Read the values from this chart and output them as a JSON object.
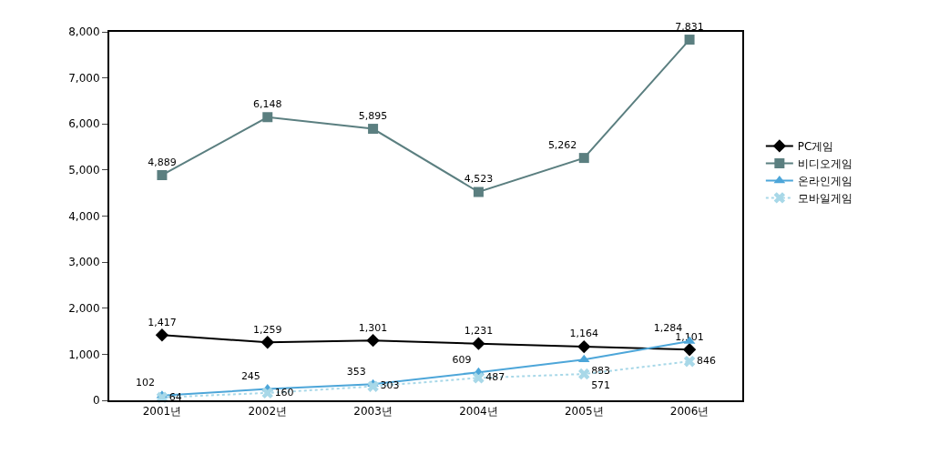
{
  "chart_data": {
    "type": "line",
    "categories": [
      "2001년",
      "2002년",
      "2003년",
      "2004년",
      "2005년",
      "2006년"
    ],
    "series": [
      {
        "name": "PC게임",
        "color": "#000000",
        "marker": "diamond",
        "line_style": "solid",
        "values": [
          1417,
          1259,
          1301,
          1231,
          1164,
          1101
        ],
        "value_labels": [
          "1,417",
          "1,259",
          "1,301",
          "1,231",
          "1,164",
          "1,101"
        ]
      },
      {
        "name": "비디오게임",
        "color": "#5b7f80",
        "marker": "square",
        "line_style": "solid",
        "values": [
          4889,
          6148,
          5895,
          4523,
          5262,
          7831
        ],
        "value_labels": [
          "4,889",
          "6,148",
          "5,895",
          "4,523",
          "5,262",
          "7,831"
        ]
      },
      {
        "name": "온라인게임",
        "color": "#4da6d9",
        "marker": "triangle",
        "line_style": "solid",
        "values": [
          102,
          245,
          353,
          609,
          883,
          1284
        ],
        "value_labels": [
          "102",
          "245",
          "353",
          "609",
          "883",
          "1,284"
        ]
      },
      {
        "name": "모바일게임",
        "color": "#a8d8e8",
        "marker": "cross",
        "line_style": "dotted",
        "values": [
          64,
          160,
          303,
          487,
          571,
          846
        ],
        "value_labels": [
          "64",
          "160",
          "303",
          "487",
          "571",
          "846"
        ]
      }
    ],
    "ylim": [
      0,
      8000
    ],
    "yticks": [
      {
        "value": 0,
        "label": "0"
      },
      {
        "value": 1000,
        "label": "1,000"
      },
      {
        "value": 2000,
        "label": "2,000"
      },
      {
        "value": 3000,
        "label": "3,000"
      },
      {
        "value": 4000,
        "label": "4,000"
      },
      {
        "value": 5000,
        "label": "5,000"
      },
      {
        "value": 6000,
        "label": "6,000"
      },
      {
        "value": 7000,
        "label": "7,000"
      },
      {
        "value": 8000,
        "label": "8,000"
      }
    ],
    "grid": false,
    "legend": "right"
  }
}
